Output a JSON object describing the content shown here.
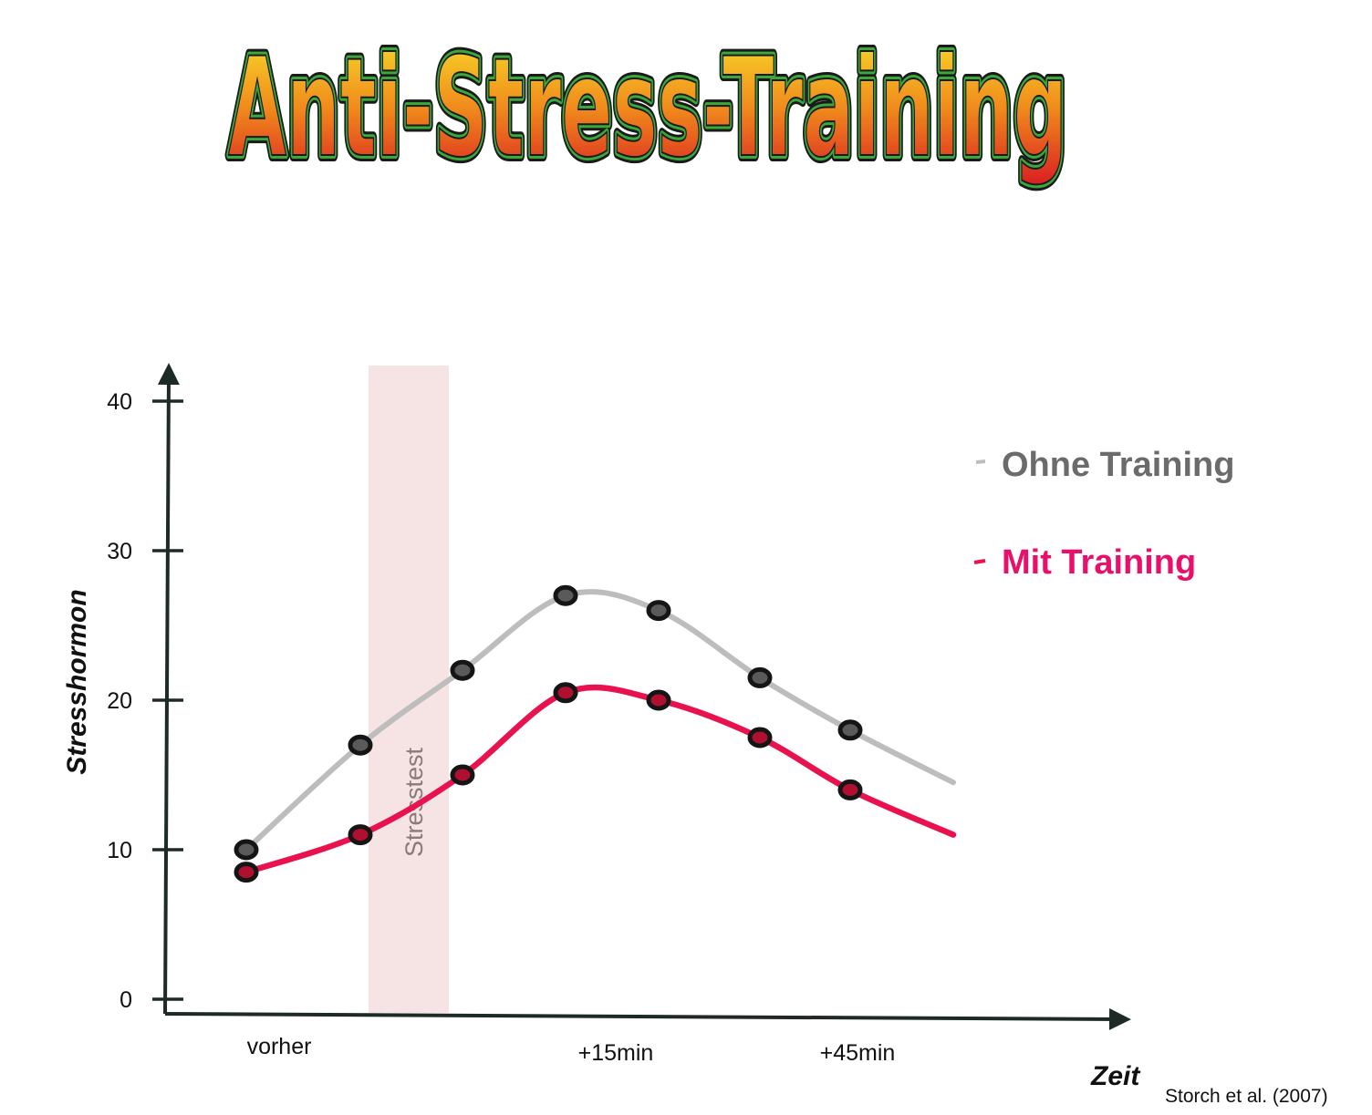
{
  "logo": {
    "text": "Anti-Stress-Training"
  },
  "chart_data": {
    "type": "line",
    "title": "Anti-Stress-Training",
    "xlabel": "Zeit",
    "ylabel": "Stresshormon",
    "ylim": [
      0,
      40
    ],
    "yticks": [
      "0",
      "10",
      "20",
      "30",
      "40"
    ],
    "xtick_labels": [
      "vorher",
      "+15min",
      "+45min"
    ],
    "shaded_region_label": "Stresstest",
    "legend_position": "top-right",
    "series": [
      {
        "name": "Ohne Training",
        "color": "#bdbdbd",
        "points": [
          [
            0,
            10
          ],
          [
            1,
            17
          ],
          [
            2,
            22
          ],
          [
            3,
            27
          ],
          [
            4,
            26
          ],
          [
            5,
            21.5
          ],
          [
            6,
            18
          ]
        ],
        "tail": [
          7,
          14.5
        ]
      },
      {
        "name": "Mit Training",
        "color": "#e8124f",
        "points": [
          [
            0,
            8.5
          ],
          [
            1,
            11
          ],
          [
            2,
            15
          ],
          [
            3,
            20.5
          ],
          [
            4,
            20
          ],
          [
            5,
            17.5
          ],
          [
            6,
            14
          ]
        ],
        "tail": [
          7,
          11
        ]
      }
    ],
    "source": "Storch et al. (2007)"
  }
}
